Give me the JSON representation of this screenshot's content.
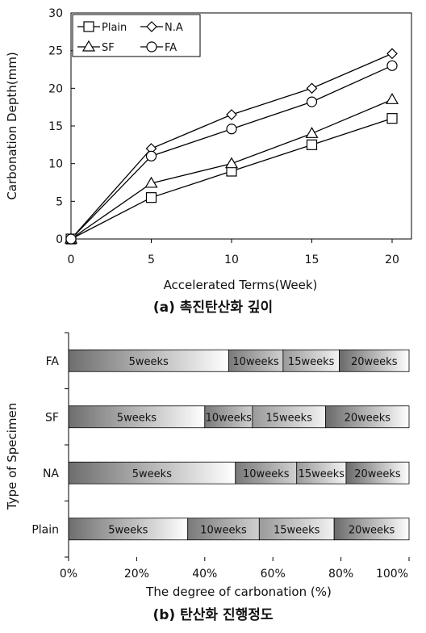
{
  "chart_data": [
    {
      "type": "line",
      "caption": "(a) 촉진탄산화 깊이",
      "xlabel": "Accelerated Terms(Week)",
      "ylabel": "Carbonation Depth(mm)",
      "x": [
        0,
        5,
        10,
        15,
        20
      ],
      "xlim": [
        0,
        20
      ],
      "ylim": [
        0,
        30
      ],
      "xticks": [
        "0",
        "5",
        "10",
        "15",
        "20"
      ],
      "yticks": [
        "0",
        "5",
        "10",
        "15",
        "20",
        "25",
        "30"
      ],
      "legend_position": "top-left",
      "series": [
        {
          "name": "Plain",
          "marker": "square",
          "values": [
            0,
            5.5,
            9,
            12.5,
            16
          ]
        },
        {
          "name": "N.A",
          "marker": "diamond",
          "values": [
            0,
            12,
            16.5,
            20,
            24.6
          ]
        },
        {
          "name": "SF",
          "marker": "triangle",
          "values": [
            0,
            7.4,
            10,
            14,
            18.5
          ]
        },
        {
          "name": "FA",
          "marker": "circle",
          "values": [
            0,
            11,
            14.6,
            18.2,
            23
          ]
        }
      ],
      "grid": false
    },
    {
      "type": "bar",
      "orientation": "horizontal",
      "stacked": "percent",
      "caption": "(b) 탄산화 진행정도",
      "xlabel": "The degree of carbonation (%)",
      "ylabel": "Type of Specimen",
      "categories": [
        "FA",
        "SF",
        "NA",
        "Plain"
      ],
      "xticks": [
        "0%",
        "20%",
        "40%",
        "60%",
        "80%",
        "100%"
      ],
      "series": [
        {
          "name": "5weeks",
          "values": [
            47,
            40,
            49,
            35
          ]
        },
        {
          "name": "10weeks",
          "values": [
            16,
            14,
            18,
            21
          ]
        },
        {
          "name": "15weeks",
          "values": [
            16.5,
            21.5,
            14.5,
            22
          ]
        },
        {
          "name": "20weeks",
          "values": [
            20.5,
            24.5,
            18.5,
            22
          ]
        }
      ],
      "grid": false
    }
  ]
}
